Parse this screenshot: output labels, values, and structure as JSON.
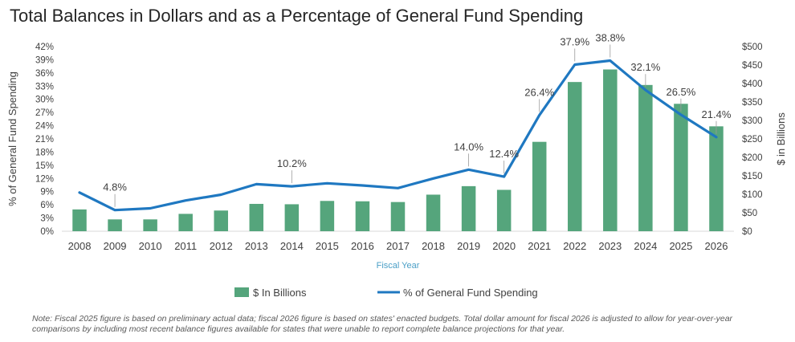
{
  "title": "Total Balances in Dollars and as a Percentage of General Fund Spending",
  "note": "Note: Fiscal 2025 figure is based on preliminary actual data; fiscal 2026 figure is based on states' enacted budgets. Total dollar amount for fiscal 2026 is adjusted to allow for year-over-year comparisons by including most recent balance figures available for states that were unable to report complete balance projections for that year.",
  "colors": {
    "bar": "#55a57c",
    "line": "#1f78c1",
    "xlabel": "#4a9fc7"
  },
  "chart_data": {
    "type": "bar+line",
    "title": "Total Balances in Dollars and as a Percentage of General Fund Spending",
    "xlabel": "Fiscal Year",
    "ylabel_left": "% of General Fund Spending",
    "ylabel_right": "$ in Billions",
    "categories": [
      "2008",
      "2009",
      "2010",
      "2011",
      "2012",
      "2013",
      "2014",
      "2015",
      "2016",
      "2017",
      "2018",
      "2019",
      "2020",
      "2021",
      "2022",
      "2023",
      "2024",
      "2025",
      "2026"
    ],
    "left_axis": {
      "min": 0,
      "max": 42,
      "step": 3,
      "ticks": [
        "0%",
        "3%",
        "6%",
        "9%",
        "12%",
        "15%",
        "18%",
        "21%",
        "24%",
        "27%",
        "30%",
        "33%",
        "36%",
        "39%",
        "42%"
      ]
    },
    "right_axis": {
      "min": 0,
      "max": 500,
      "step": 50,
      "ticks": [
        "$0",
        "$50",
        "$100",
        "$150",
        "$200",
        "$250",
        "$300",
        "$350",
        "$400",
        "$450",
        "$500"
      ]
    },
    "series": [
      {
        "name": "$ In Billions",
        "type": "bar",
        "axis": "right",
        "values": [
          59,
          32,
          32,
          47,
          56,
          74,
          73,
          82,
          81,
          79,
          99,
          122,
          112,
          242,
          404,
          438,
          396,
          345,
          284
        ]
      },
      {
        "name": "% of General Fund Spending",
        "type": "line",
        "axis": "left",
        "values": [
          8.8,
          4.8,
          5.2,
          7.0,
          8.3,
          10.7,
          10.2,
          10.9,
          10.4,
          9.8,
          12.0,
          14.0,
          12.4,
          26.4,
          37.9,
          38.8,
          32.1,
          26.5,
          21.4
        ]
      }
    ],
    "data_labels": [
      {
        "text": "4.8%",
        "index": 1
      },
      {
        "text": "10.2%",
        "index": 6
      },
      {
        "text": "14.0%",
        "index": 11
      },
      {
        "text": "12.4%",
        "index": 12
      },
      {
        "text": "26.4%",
        "index": 13
      },
      {
        "text": "37.9%",
        "index": 14
      },
      {
        "text": "38.8%",
        "index": 15
      },
      {
        "text": "32.1%",
        "index": 16
      },
      {
        "text": "26.5%",
        "index": 17
      },
      {
        "text": "21.4%",
        "index": 18
      }
    ],
    "legend": [
      "$ In Billions",
      "% of General Fund Spending"
    ],
    "legend_position": "bottom"
  }
}
